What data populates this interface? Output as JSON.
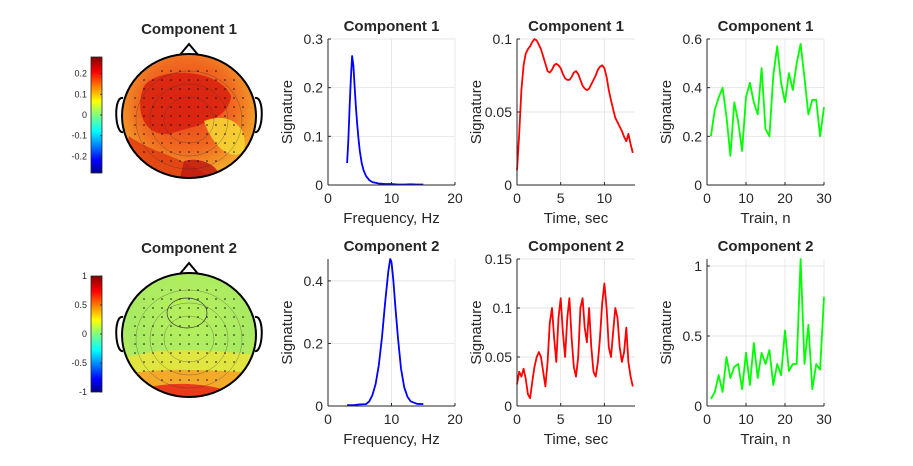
{
  "figure": {
    "background": "#ffffff"
  },
  "chart_data": [
    {
      "type": "heatmap",
      "subtype": "scalp-topography",
      "title": "Component 1",
      "colormap": "jet",
      "colorbar_ticks": [
        0.2,
        0.1,
        0,
        -0.1,
        -0.2
      ],
      "colorbar_tick_labels": [
        "0.2",
        "0.1",
        "0",
        "-0.1",
        "-0.2"
      ],
      "colorbar_range": [
        -0.28,
        0.28
      ]
    },
    {
      "type": "line",
      "title": "Component 1",
      "xlabel": "Frequency, Hz",
      "ylabel": "Signature",
      "xlim": [
        0,
        20
      ],
      "ylim": [
        0,
        0.3
      ],
      "xticks": [
        0,
        10,
        20
      ],
      "yticks": [
        0,
        0.1,
        0.2,
        0.3
      ],
      "ytick_labels": [
        "0",
        "0.1",
        "0.2",
        "0.3"
      ],
      "color": "#0000ff",
      "grid": true,
      "series": [
        {
          "x": [
            3,
            3.2,
            3.4,
            3.6,
            3.8,
            4,
            4.2,
            4.4,
            4.6,
            4.8,
            5,
            5.3,
            5.6,
            6,
            6.5,
            7,
            8,
            9,
            10,
            11,
            12,
            13,
            14,
            15
          ],
          "y": [
            0.045,
            0.09,
            0.16,
            0.22,
            0.265,
            0.245,
            0.2,
            0.16,
            0.125,
            0.095,
            0.07,
            0.045,
            0.03,
            0.018,
            0.01,
            0.006,
            0.003,
            0.002,
            0.002,
            0.001,
            0.001,
            0.0015,
            0.001,
            0.001
          ]
        }
      ]
    },
    {
      "type": "line",
      "title": "Component 1",
      "xlabel": "Time, sec",
      "ylabel": "Signature",
      "xlim": [
        0,
        13.5
      ],
      "ylim": [
        0,
        0.1
      ],
      "xticks": [
        0,
        5,
        10
      ],
      "yticks": [
        0,
        0.05,
        0.1
      ],
      "ytick_labels": [
        "0",
        "0.05",
        "0.1"
      ],
      "color": "#ff0000",
      "grid": true,
      "series": [
        {
          "x": [
            0,
            0.25,
            0.5,
            0.75,
            1,
            1.25,
            1.5,
            1.75,
            2,
            2.25,
            2.5,
            2.75,
            3,
            3.25,
            3.5,
            3.75,
            4,
            4.25,
            4.5,
            4.75,
            5,
            5.25,
            5.5,
            5.75,
            6,
            6.25,
            6.5,
            6.75,
            7,
            7.25,
            7.5,
            7.75,
            8,
            8.25,
            8.5,
            8.75,
            9,
            9.25,
            9.5,
            9.75,
            10,
            10.25,
            10.5,
            10.75,
            11,
            11.25,
            11.5,
            11.75,
            12,
            12.25,
            12.5,
            12.75,
            13,
            13.25
          ],
          "y": [
            0.01,
            0.035,
            0.065,
            0.082,
            0.09,
            0.093,
            0.095,
            0.098,
            0.1,
            0.099,
            0.096,
            0.093,
            0.088,
            0.083,
            0.078,
            0.077,
            0.079,
            0.082,
            0.083,
            0.082,
            0.08,
            0.076,
            0.073,
            0.072,
            0.072,
            0.074,
            0.077,
            0.078,
            0.076,
            0.072,
            0.068,
            0.066,
            0.065,
            0.066,
            0.069,
            0.072,
            0.075,
            0.079,
            0.081,
            0.082,
            0.08,
            0.074,
            0.065,
            0.058,
            0.052,
            0.046,
            0.043,
            0.04,
            0.037,
            0.033,
            0.03,
            0.035,
            0.028,
            0.022
          ]
        }
      ]
    },
    {
      "type": "line",
      "title": "Component 1",
      "xlabel": "Train, n",
      "ylabel": "Signature",
      "xlim": [
        0,
        30
      ],
      "ylim": [
        0,
        0.6
      ],
      "xticks": [
        0,
        10,
        20,
        30
      ],
      "yticks": [
        0,
        0.2,
        0.4,
        0.6
      ],
      "ytick_labels": [
        "0",
        "0.2",
        "0.4",
        "0.6"
      ],
      "color": "#00ff00",
      "grid": true,
      "series": [
        {
          "x": [
            1,
            2,
            3,
            4,
            5,
            6,
            7,
            8,
            9,
            10,
            11,
            12,
            13,
            14,
            15,
            16,
            17,
            18,
            19,
            20,
            21,
            22,
            23,
            24,
            25,
            26,
            27,
            28,
            29,
            30
          ],
          "y": [
            0.2,
            0.31,
            0.36,
            0.4,
            0.28,
            0.12,
            0.34,
            0.26,
            0.14,
            0.36,
            0.42,
            0.34,
            0.29,
            0.48,
            0.23,
            0.2,
            0.45,
            0.57,
            0.42,
            0.34,
            0.46,
            0.39,
            0.5,
            0.58,
            0.44,
            0.29,
            0.35,
            0.35,
            0.2,
            0.32
          ]
        }
      ]
    },
    {
      "type": "heatmap",
      "subtype": "scalp-topography",
      "title": "Component 2",
      "colormap": "jet",
      "colorbar_ticks": [
        1,
        0.5,
        0,
        -0.5,
        -1
      ],
      "colorbar_tick_labels": [
        "1",
        "0.5",
        "0",
        "-0.5",
        "-1"
      ],
      "colorbar_range": [
        -1,
        1
      ]
    },
    {
      "type": "line",
      "title": "Component 2",
      "xlabel": "Frequency, Hz",
      "ylabel": "Signature",
      "xlim": [
        0,
        20
      ],
      "ylim": [
        0,
        0.47
      ],
      "xticks": [
        0,
        10,
        20
      ],
      "yticks": [
        0,
        0.2,
        0.4
      ],
      "ytick_labels": [
        "0",
        "0.2",
        "0.4"
      ],
      "color": "#0000ff",
      "grid": true,
      "series": [
        {
          "x": [
            3,
            4,
            5,
            6,
            6.5,
            7,
            7.5,
            8,
            8.5,
            9,
            9.5,
            9.8,
            10,
            10.3,
            10.6,
            11,
            11.5,
            12,
            12.5,
            13,
            14,
            15
          ],
          "y": [
            0.003,
            0.003,
            0.005,
            0.006,
            0.015,
            0.035,
            0.07,
            0.13,
            0.22,
            0.33,
            0.43,
            0.47,
            0.46,
            0.4,
            0.32,
            0.22,
            0.12,
            0.06,
            0.03,
            0.015,
            0.007,
            0.006
          ]
        }
      ]
    },
    {
      "type": "line",
      "title": "Component 2",
      "xlabel": "Time, sec",
      "ylabel": "Signature",
      "xlim": [
        0,
        13.5
      ],
      "ylim": [
        0,
        0.15
      ],
      "xticks": [
        0,
        5,
        10
      ],
      "yticks": [
        0,
        0.05,
        0.1,
        0.15
      ],
      "ytick_labels": [
        "0",
        "0.05",
        "0.1",
        "0.15"
      ],
      "color": "#ff0000",
      "grid": true,
      "series": [
        {
          "x": [
            0,
            0.25,
            0.5,
            0.75,
            1,
            1.25,
            1.5,
            1.75,
            2,
            2.25,
            2.5,
            2.75,
            3,
            3.25,
            3.5,
            3.75,
            4,
            4.25,
            4.5,
            4.75,
            5,
            5.25,
            5.5,
            5.75,
            6,
            6.25,
            6.5,
            6.75,
            7,
            7.25,
            7.5,
            7.75,
            8,
            8.25,
            8.5,
            8.75,
            9,
            9.25,
            9.5,
            9.75,
            10,
            10.25,
            10.5,
            10.75,
            11,
            11.25,
            11.5,
            11.75,
            12,
            12.25,
            12.5,
            12.75,
            13,
            13.25
          ],
          "y": [
            0.022,
            0.035,
            0.03,
            0.038,
            0.028,
            0.012,
            0.008,
            0.025,
            0.04,
            0.05,
            0.055,
            0.05,
            0.035,
            0.02,
            0.045,
            0.085,
            0.1,
            0.07,
            0.045,
            0.09,
            0.11,
            0.075,
            0.05,
            0.09,
            0.11,
            0.07,
            0.04,
            0.03,
            0.05,
            0.1,
            0.11,
            0.08,
            0.065,
            0.1,
            0.06,
            0.035,
            0.03,
            0.045,
            0.07,
            0.105,
            0.125,
            0.1,
            0.06,
            0.05,
            0.075,
            0.1,
            0.09,
            0.06,
            0.045,
            0.055,
            0.08,
            0.045,
            0.03,
            0.02
          ]
        }
      ]
    },
    {
      "type": "line",
      "title": "Component 2",
      "xlabel": "Train, n",
      "ylabel": "Signature",
      "xlim": [
        0,
        30
      ],
      "ylim": [
        0,
        1.05
      ],
      "xticks": [
        0,
        10,
        20,
        30
      ],
      "yticks": [
        0,
        0.5,
        1
      ],
      "ytick_labels": [
        "0",
        "0.5",
        "1"
      ],
      "color": "#00ff00",
      "grid": true,
      "series": [
        {
          "x": [
            1,
            2,
            3,
            4,
            5,
            6,
            7,
            8,
            9,
            10,
            11,
            12,
            13,
            14,
            15,
            16,
            17,
            18,
            19,
            20,
            21,
            22,
            23,
            24,
            25,
            26,
            27,
            28,
            29,
            30
          ],
          "y": [
            0.05,
            0.1,
            0.22,
            0.1,
            0.35,
            0.2,
            0.28,
            0.3,
            0.12,
            0.38,
            0.15,
            0.45,
            0.2,
            0.38,
            0.3,
            0.4,
            0.15,
            0.3,
            0.22,
            0.54,
            0.25,
            0.3,
            0.3,
            1.05,
            0.3,
            0.58,
            0.12,
            0.3,
            0.26,
            0.78
          ]
        }
      ]
    }
  ]
}
